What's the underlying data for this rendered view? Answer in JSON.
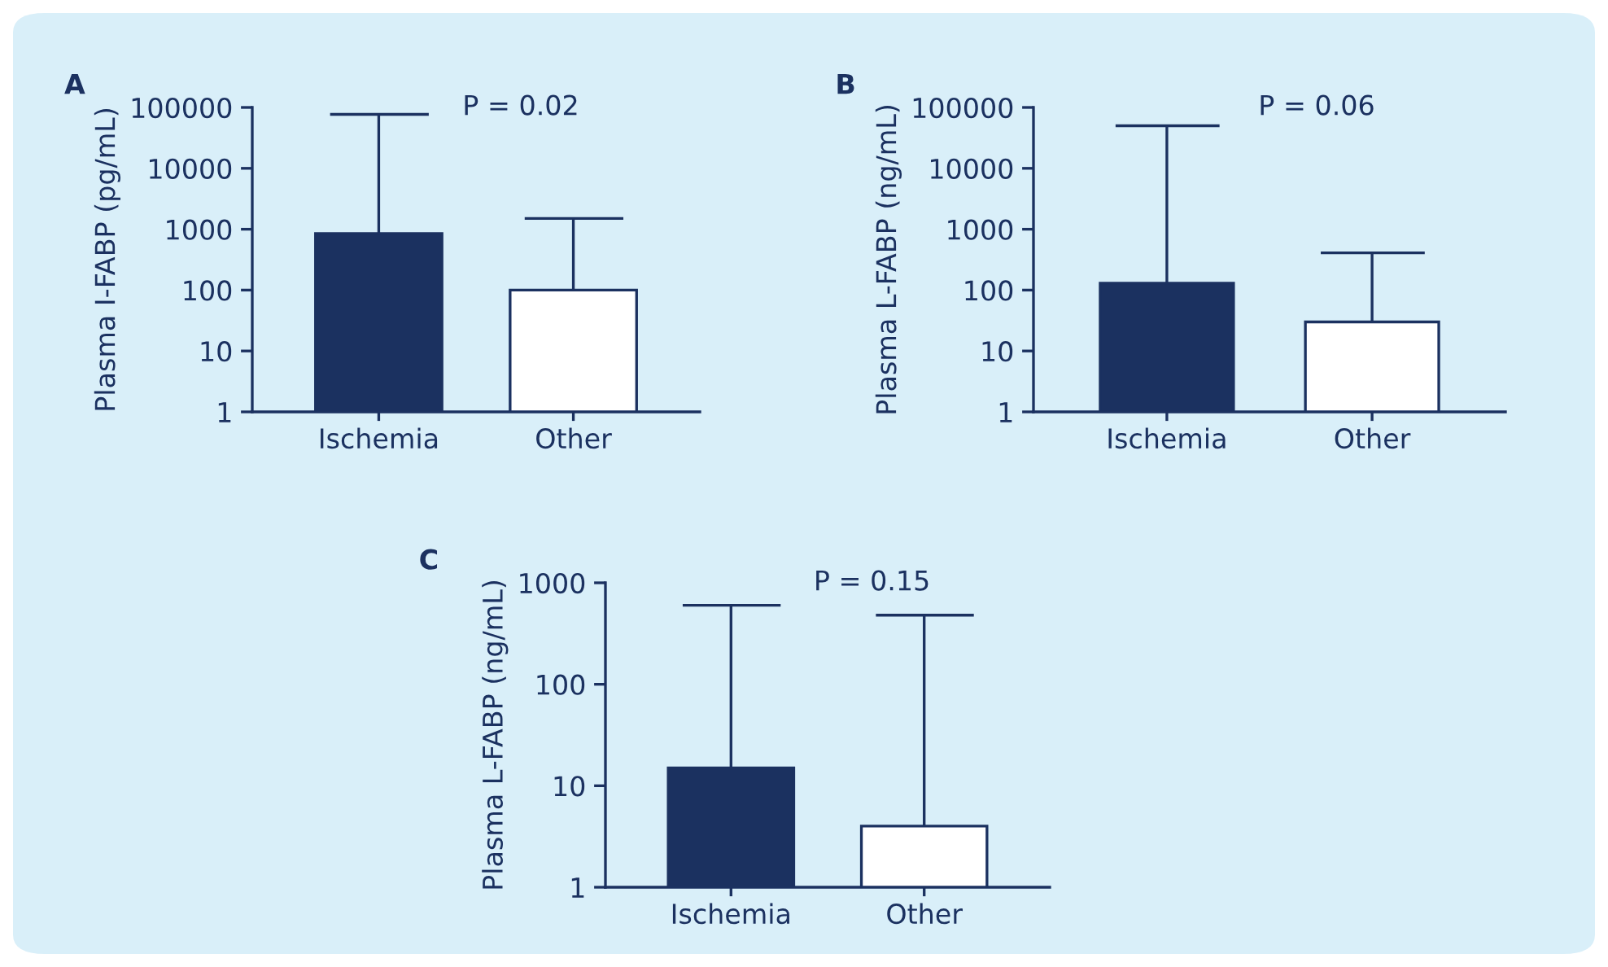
{
  "chart_data": [
    {
      "type": "bar",
      "title": "A",
      "ylabel": "Plasma I-FABP (pg/mL)",
      "categories": [
        "Ischemia",
        "Other"
      ],
      "values": [
        850,
        100
      ],
      "colors": [
        "#1b3160",
        "#ffffff"
      ],
      "errors": [
        [
          850,
          77000
        ],
        [
          100,
          1500
        ]
      ],
      "log": true,
      "ylim": [
        1,
        100000
      ],
      "yticks": [
        1,
        10,
        100,
        1000,
        10000,
        100000
      ],
      "annotations": [
        "P = 0.02"
      ],
      "grid": false,
      "legend": false
    },
    {
      "type": "bar",
      "title": "B",
      "ylabel": "Plasma L-FABP (ng/mL)",
      "categories": [
        "Ischemia",
        "Other"
      ],
      "values": [
        130,
        30
      ],
      "colors": [
        "#1b3160",
        "#ffffff"
      ],
      "errors": [
        [
          130,
          50000
        ],
        [
          30,
          410
        ]
      ],
      "log": true,
      "ylim": [
        1,
        100000
      ],
      "yticks": [
        1,
        10,
        100,
        1000,
        10000,
        100000
      ],
      "annotations": [
        "P = 0.06"
      ],
      "grid": false,
      "legend": false
    },
    {
      "type": "bar",
      "title": "C",
      "ylabel": "Plasma L-FABP (ng/mL)",
      "categories": [
        "Ischemia",
        "Other"
      ],
      "values": [
        15,
        4
      ],
      "colors": [
        "#1b3160",
        "#ffffff"
      ],
      "errors": [
        [
          15,
          600
        ],
        [
          4,
          480
        ]
      ],
      "log": true,
      "ylim": [
        1,
        1000
      ],
      "yticks": [
        1,
        10,
        100,
        1000
      ],
      "annotations": [
        "P = 0.15"
      ],
      "grid": false,
      "legend": false
    }
  ]
}
